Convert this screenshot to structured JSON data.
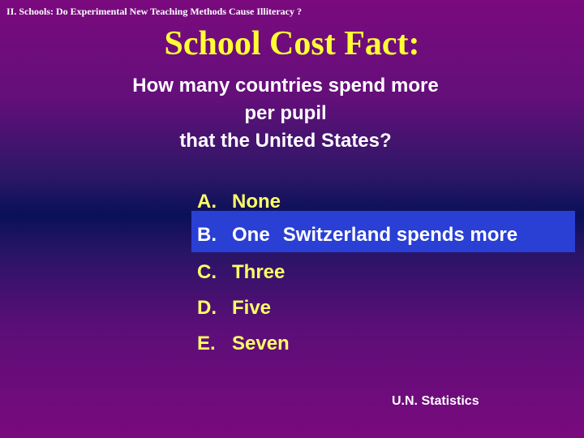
{
  "header": "II.  Schools: Do Experimental New Teaching Methods Cause Illiteracy ?",
  "title": "School Cost Fact:",
  "question": [
    "How many countries spend more",
    "per pupil",
    "that the United States?"
  ],
  "options": [
    {
      "letter": "A.",
      "text": "None",
      "note": ""
    },
    {
      "letter": "B.",
      "text": "One",
      "note": "Switzerland spends more"
    },
    {
      "letter": "C.",
      "text": "Three",
      "note": ""
    },
    {
      "letter": "D.",
      "text": "Five",
      "note": ""
    },
    {
      "letter": "E.",
      "text": "Seven",
      "note": ""
    }
  ],
  "selected_option": "B.",
  "source": "U.N. Statistics",
  "colors": {
    "title": "#ffff33",
    "options": "#ffff66",
    "highlight": "#2a3fd4",
    "text": "#ffffff"
  }
}
